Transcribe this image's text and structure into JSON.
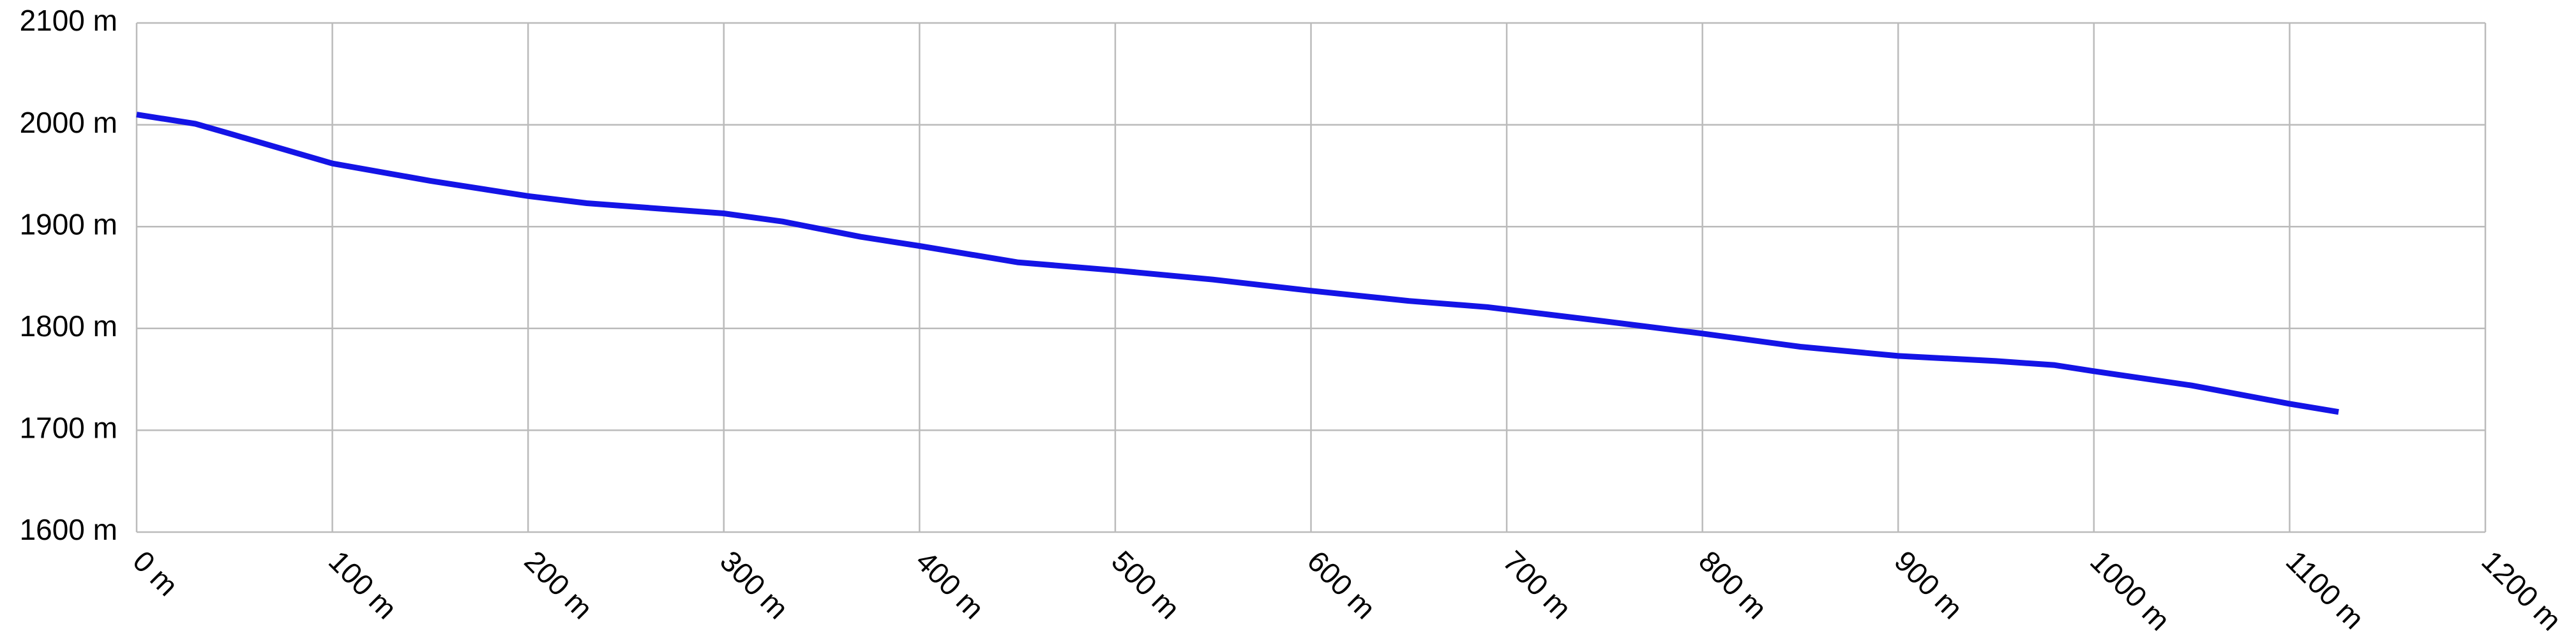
{
  "chart_data": {
    "type": "line",
    "x": [
      0,
      30,
      50,
      100,
      150,
      200,
      230,
      300,
      330,
      370,
      400,
      450,
      500,
      550,
      600,
      650,
      690,
      750,
      800,
      850,
      900,
      950,
      980,
      1000,
      1050,
      1100,
      1125
    ],
    "values": [
      2010,
      2001,
      1990,
      1962,
      1945,
      1930,
      1923,
      1913,
      1905,
      1890,
      1881,
      1865,
      1857,
      1848,
      1837,
      1827,
      1821,
      1807,
      1795,
      1782,
      1773,
      1768,
      1764,
      1758,
      1744,
      1726,
      1718
    ],
    "color": "#1414e6",
    "xlim": [
      0,
      1200
    ],
    "xticks": [
      {
        "value": 0,
        "label": "0 m"
      },
      {
        "value": 100,
        "label": "100 m"
      },
      {
        "value": 200,
        "label": "200 m"
      },
      {
        "value": 300,
        "label": "300 m"
      },
      {
        "value": 400,
        "label": "400 m"
      },
      {
        "value": 500,
        "label": "500 m"
      },
      {
        "value": 600,
        "label": "600 m"
      },
      {
        "value": 700,
        "label": "700 m"
      },
      {
        "value": 800,
        "label": "800 m"
      },
      {
        "value": 900,
        "label": "900 m"
      },
      {
        "value": 1000,
        "label": "1000 m"
      },
      {
        "value": 1100,
        "label": "1100 m"
      },
      {
        "value": 1200,
        "label": "1200 m"
      }
    ],
    "ylim": [
      1600,
      2100
    ],
    "yticks": [
      {
        "value": 1600,
        "label": "1600 m"
      },
      {
        "value": 1700,
        "label": "1700 m"
      },
      {
        "value": 1800,
        "label": "1800 m"
      },
      {
        "value": 1900,
        "label": "1900 m"
      },
      {
        "value": 2000,
        "label": "2000 m"
      },
      {
        "value": 2100,
        "label": "2100 m"
      }
    ],
    "grid": true
  }
}
